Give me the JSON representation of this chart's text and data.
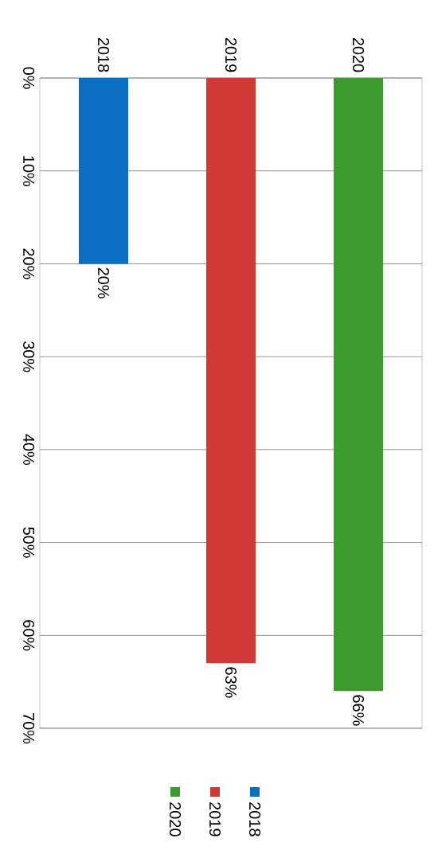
{
  "chart_data": {
    "type": "bar",
    "categories": [
      "2018",
      "2019",
      "2020"
    ],
    "series": [
      {
        "name": "2018",
        "color": "#0a6fc2",
        "values": [
          20,
          null,
          null
        ],
        "value_labels": [
          "20%",
          null,
          null
        ]
      },
      {
        "name": "2019",
        "color": "#d03a35",
        "values": [
          null,
          63,
          null
        ],
        "value_labels": [
          null,
          "63%",
          null
        ]
      },
      {
        "name": "2020",
        "color": "#3d9a2f",
        "values": [
          null,
          null,
          66
        ],
        "value_labels": [
          null,
          null,
          "66%"
        ]
      }
    ],
    "ylim": [
      70,
      0
    ],
    "yticks": [
      {
        "value": 0,
        "label": "0%"
      },
      {
        "value": 10,
        "label": "10%"
      },
      {
        "value": 20,
        "label": "20%"
      },
      {
        "value": 30,
        "label": "30%"
      },
      {
        "value": 40,
        "label": "40%"
      },
      {
        "value": 50,
        "label": "50%"
      },
      {
        "value": 60,
        "label": "60%"
      },
      {
        "value": 70,
        "label": "70%"
      }
    ],
    "grid": "y",
    "legend": "bottom"
  }
}
